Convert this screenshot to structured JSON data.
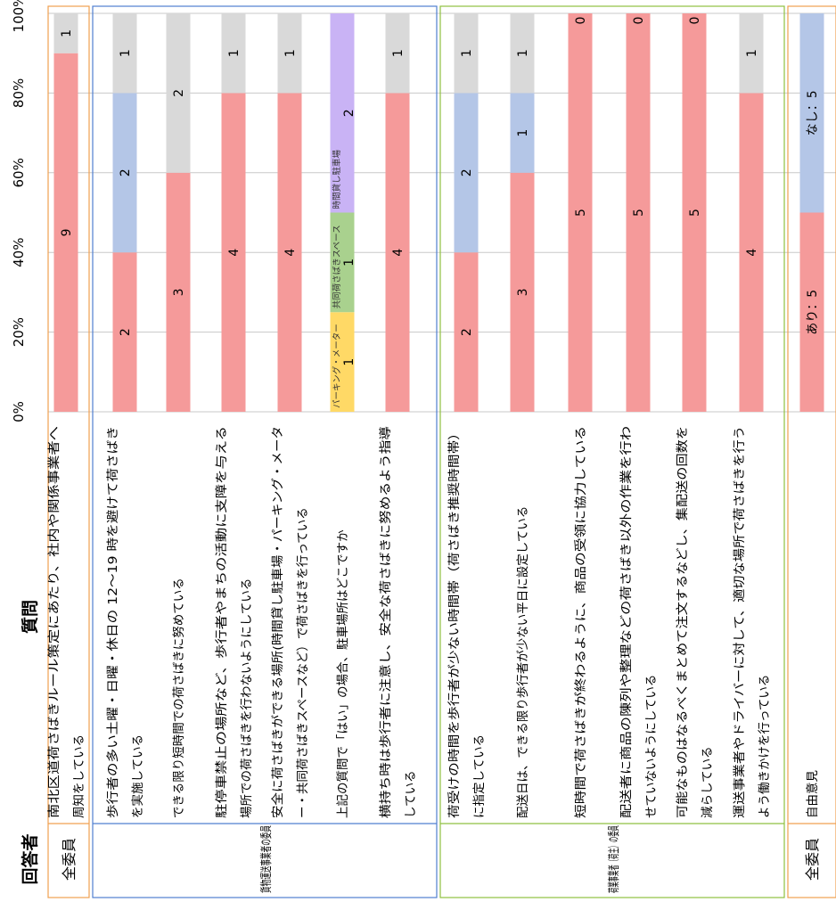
{
  "header": {
    "respondent": "回答者",
    "question": "質問"
  },
  "groups": [
    {
      "label": "全委員",
      "color": "#f0a050",
      "rows": [
        0
      ]
    },
    {
      "label": "貨物運送事業者の委員",
      "color": "#4f7fd0",
      "rows": [
        1,
        2,
        3,
        4,
        5,
        6
      ]
    },
    {
      "label": "荷業事業者（荷主）の委員",
      "color": "#8fc040",
      "rows": [
        7,
        8,
        9,
        10,
        11,
        12
      ]
    },
    {
      "label": "全委員",
      "color": "#f0a050",
      "rows": [
        13
      ]
    }
  ],
  "chart_data": {
    "type": "bar",
    "orientation": "horizontal-stacked-100",
    "ylim": [
      0,
      100
    ],
    "ticks": [
      "0%",
      "20%",
      "40%",
      "60%",
      "80%",
      "100%"
    ],
    "grid": true,
    "rows": [
      {
        "lines": [
          "南北区道荷さばきルール策定にあたり、社内や関係事業者へ",
          "周知をしている"
        ],
        "segments": [
          {
            "value": 9,
            "color": "#f59a9a",
            "label": "9"
          },
          {
            "value": 1,
            "color": "#d9d9d9",
            "label": "1"
          }
        ]
      },
      {
        "lines": [
          "歩行者の多い土曜・日曜・休日の 12～19 時を避けて荷さばき",
          "を実施している"
        ],
        "segments": [
          {
            "value": 2,
            "color": "#f59a9a",
            "label": "2"
          },
          {
            "value": 2,
            "color": "#b4c6e7",
            "label": "2"
          },
          {
            "value": 1,
            "color": "#d9d9d9",
            "label": "1"
          }
        ]
      },
      {
        "lines": [
          "できる限り短時間での荷さばきに努めている"
        ],
        "segments": [
          {
            "value": 3,
            "color": "#f59a9a",
            "label": "3"
          },
          {
            "value": 2,
            "color": "#d9d9d9",
            "label": "2"
          }
        ]
      },
      {
        "lines": [
          "駐停車禁止の場所など、歩行者やまちの活動に支障を与える",
          "場所での荷さばきを行わないようにしている"
        ],
        "segments": [
          {
            "value": 4,
            "color": "#f59a9a",
            "label": "4"
          },
          {
            "value": 1,
            "color": "#d9d9d9",
            "label": "1"
          }
        ]
      },
      {
        "lines": [
          "安全に荷さばきができる場所(時間貸し駐車場・パーキング・メータ",
          "ー・共同荷さばきスペースなど）で荷さばきを行っている"
        ],
        "segments": [
          {
            "value": 4,
            "color": "#f59a9a",
            "label": "4"
          },
          {
            "value": 1,
            "color": "#d9d9d9",
            "label": "1"
          }
        ]
      },
      {
        "lines": [
          "上記の質問で「はい」の場合、駐車場所はどこですか"
        ],
        "segments": [
          {
            "value": 1,
            "color": "#ffd966",
            "label": "1",
            "name": "パーキング・メーター"
          },
          {
            "value": 1,
            "color": "#a9d18e",
            "label": "1",
            "name": "共同荷さばきスペース"
          },
          {
            "value": 2,
            "color": "#c9b3f5",
            "label": "2",
            "name": "時間貸し駐車場"
          }
        ]
      },
      {
        "lines": [
          "横持ち時は歩行者に注意し、安全な荷さばきに努めるよう指導",
          "している"
        ],
        "segments": [
          {
            "value": 4,
            "color": "#f59a9a",
            "label": "4"
          },
          {
            "value": 1,
            "color": "#d9d9d9",
            "label": "1"
          }
        ]
      },
      {
        "lines": [
          "荷受けの時間を歩行者が少ない時間帯（荷さばき推奨時間帯）",
          "に指定している"
        ],
        "segments": [
          {
            "value": 2,
            "color": "#f59a9a",
            "label": "2"
          },
          {
            "value": 2,
            "color": "#b4c6e7",
            "label": "2"
          },
          {
            "value": 1,
            "color": "#d9d9d9",
            "label": "1"
          }
        ]
      },
      {
        "lines": [
          "配送日は、できる限り歩行者が少ない平日に設定している"
        ],
        "segments": [
          {
            "value": 3,
            "color": "#f59a9a",
            "label": "3"
          },
          {
            "value": 1,
            "color": "#b4c6e7",
            "label": "1"
          },
          {
            "value": 1,
            "color": "#d9d9d9",
            "label": "1"
          }
        ]
      },
      {
        "lines": [
          "短時間で荷さばきが終わるように、商品の受領に協力している"
        ],
        "segments": [
          {
            "value": 5,
            "color": "#f59a9a",
            "label": "5"
          },
          {
            "value": 0,
            "color": "#d9d9d9",
            "label": "0"
          }
        ]
      },
      {
        "lines": [
          "配送者に商品の陳列や整理などの荷さばき以外の作業を行わ",
          "せていないようにしている"
        ],
        "segments": [
          {
            "value": 5,
            "color": "#f59a9a",
            "label": "5"
          },
          {
            "value": 0,
            "color": "#d9d9d9",
            "label": "0"
          }
        ]
      },
      {
        "lines": [
          "可能なものはなるべくまとめて注文するなどし、集配送の回数を",
          "減らしている"
        ],
        "segments": [
          {
            "value": 5,
            "color": "#f59a9a",
            "label": "5"
          },
          {
            "value": 0,
            "color": "#d9d9d9",
            "label": "0"
          }
        ]
      },
      {
        "lines": [
          "運送事業者やドライバーに対して、適切な場所で荷さばきを行う",
          "よう働きかけを行っている"
        ],
        "segments": [
          {
            "value": 4,
            "color": "#f59a9a",
            "label": "4"
          },
          {
            "value": 1,
            "color": "#d9d9d9",
            "label": "1"
          }
        ]
      },
      {
        "lines": [
          "自由意見"
        ],
        "segments": [
          {
            "value": 5,
            "color": "#f59a9a",
            "label": "あり：5"
          },
          {
            "value": 5,
            "color": "#b4c6e7",
            "label": "なし：5"
          }
        ]
      }
    ]
  }
}
